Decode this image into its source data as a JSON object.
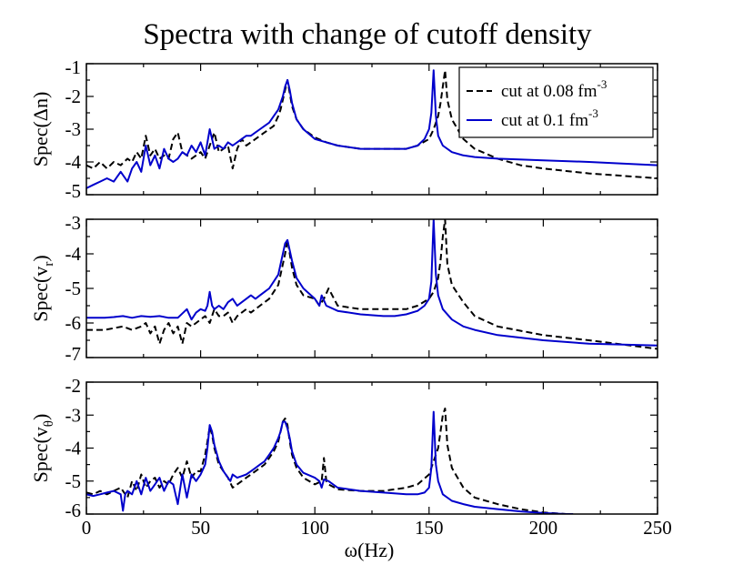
{
  "chart_data": {
    "type": "line",
    "title": "Spectra with change of cutoff density",
    "xlabel": "ω(Hz)",
    "xlim": [
      0,
      250
    ],
    "xticks": [
      0,
      50,
      100,
      150,
      200,
      250
    ],
    "legend": {
      "placement": "top-right of top panel",
      "entries": [
        {
          "label": "cut at 0.08 fm",
          "sup": "-3",
          "style": "dashed",
          "color": "#000000"
        },
        {
          "label": "cut at 0.1 fm",
          "sup": "-3",
          "style": "solid",
          "color": "#0000cc"
        }
      ]
    },
    "panels": [
      {
        "ylabel": "Spec(Δn)",
        "ylim": [
          -5,
          -1
        ],
        "yticks": [
          -5,
          -4,
          -3,
          -2,
          -1
        ],
        "series": [
          {
            "style": "dashed",
            "color": "#000000",
            "x": [
              0,
              3,
              6,
              9,
              12,
              15,
              18,
              20,
              22,
              24,
              26,
              28,
              30,
              32,
              34,
              36,
              38,
              40,
              42,
              44,
              46,
              48,
              50,
              52,
              54,
              56,
              58,
              60,
              62,
              64,
              66,
              68,
              70,
              72,
              74,
              76,
              78,
              80,
              82,
              84,
              85,
              86,
              87,
              88,
              89,
              90,
              92,
              95,
              100,
              105,
              110,
              120,
              130,
              140,
              145,
              150,
              152,
              154,
              155,
              156,
              157,
              158,
              160,
              165,
              170,
              180,
              190,
              200,
              220,
              250
            ],
            "y": [
              -4.1,
              -4.2,
              -4.0,
              -4.2,
              -4.0,
              -4.1,
              -3.9,
              -4.0,
              -3.7,
              -3.9,
              -3.2,
              -3.8,
              -3.6,
              -3.9,
              -3.8,
              -3.9,
              -3.3,
              -3.1,
              -3.7,
              -3.8,
              -3.9,
              -3.8,
              -3.7,
              -3.9,
              -3.5,
              -3.1,
              -3.7,
              -3.6,
              -3.5,
              -4.2,
              -3.6,
              -3.3,
              -3.5,
              -3.4,
              -3.3,
              -3.2,
              -3.1,
              -3.0,
              -2.9,
              -2.6,
              -2.4,
              -2.1,
              -1.8,
              -1.5,
              -1.9,
              -2.3,
              -2.7,
              -3.0,
              -3.25,
              -3.4,
              -3.5,
              -3.6,
              -3.6,
              -3.6,
              -3.5,
              -3.3,
              -3.0,
              -2.6,
              -2.2,
              -1.7,
              -1.2,
              -2.1,
              -2.7,
              -3.3,
              -3.6,
              -3.9,
              -4.1,
              -4.2,
              -4.35,
              -4.5
            ]
          },
          {
            "style": "solid",
            "color": "#0000cc",
            "x": [
              0,
              3,
              6,
              9,
              12,
              15,
              18,
              20,
              22,
              24,
              26,
              28,
              30,
              32,
              34,
              36,
              38,
              40,
              42,
              44,
              46,
              48,
              50,
              52,
              53,
              54,
              55,
              56,
              58,
              60,
              62,
              64,
              66,
              68,
              70,
              72,
              74,
              76,
              78,
              80,
              82,
              84,
              85,
              86,
              87,
              88,
              89,
              90,
              92,
              95,
              100,
              105,
              110,
              120,
              130,
              140,
              145,
              148,
              150,
              151,
              152,
              153,
              154,
              156,
              160,
              165,
              170,
              180,
              200,
              220,
              250
            ],
            "y": [
              -4.8,
              -4.7,
              -4.6,
              -4.5,
              -4.6,
              -4.3,
              -4.6,
              -4.2,
              -4.0,
              -4.3,
              -3.5,
              -4.1,
              -3.8,
              -4.2,
              -3.6,
              -3.9,
              -4.0,
              -3.9,
              -3.7,
              -3.8,
              -3.5,
              -3.7,
              -3.4,
              -3.8,
              -3.4,
              -3.0,
              -3.3,
              -3.6,
              -3.5,
              -3.6,
              -3.4,
              -3.5,
              -3.4,
              -3.3,
              -3.2,
              -3.2,
              -3.1,
              -3.0,
              -2.9,
              -2.8,
              -2.6,
              -2.4,
              -2.2,
              -2.0,
              -1.7,
              -1.5,
              -1.8,
              -2.2,
              -2.7,
              -3.0,
              -3.3,
              -3.4,
              -3.5,
              -3.6,
              -3.6,
              -3.6,
              -3.5,
              -3.3,
              -3.0,
              -2.5,
              -1.2,
              -2.6,
              -3.2,
              -3.5,
              -3.7,
              -3.8,
              -3.85,
              -3.9,
              -3.95,
              -4.0,
              -4.1
            ]
          }
        ]
      },
      {
        "ylabel": "Spec(v",
        "ylabel_sub": "r",
        "ylabel_after": ")",
        "ylim": [
          -7,
          -3
        ],
        "yticks": [
          -7,
          -6,
          -5,
          -4,
          -3
        ],
        "series": [
          {
            "style": "dashed",
            "color": "#000000",
            "x": [
              0,
              4,
              8,
              12,
              16,
              20,
              24,
              26,
              28,
              30,
              32,
              34,
              36,
              38,
              40,
              42,
              44,
              46,
              48,
              50,
              52,
              54,
              56,
              58,
              60,
              62,
              64,
              66,
              68,
              70,
              72,
              74,
              76,
              78,
              80,
              82,
              84,
              85,
              86,
              87,
              88,
              89,
              90,
              92,
              95,
              100,
              102,
              104,
              106,
              110,
              120,
              130,
              140,
              145,
              150,
              152,
              154,
              155,
              156,
              157,
              158,
              160,
              165,
              170,
              180,
              200,
              220,
              250
            ],
            "y": [
              -6.2,
              -6.2,
              -6.2,
              -6.15,
              -6.1,
              -6.2,
              -6.1,
              -6.0,
              -6.3,
              -6.1,
              -6.6,
              -6.2,
              -6.0,
              -6.3,
              -6.1,
              -6.6,
              -6.0,
              -6.1,
              -6.0,
              -5.9,
              -5.8,
              -6.0,
              -5.6,
              -5.8,
              -5.8,
              -5.7,
              -6.0,
              -5.8,
              -5.7,
              -5.6,
              -5.7,
              -5.6,
              -5.5,
              -5.4,
              -5.3,
              -5.1,
              -4.9,
              -4.6,
              -4.3,
              -4.0,
              -3.6,
              -4.0,
              -4.4,
              -4.9,
              -5.2,
              -5.3,
              -5.5,
              -5.3,
              -5.0,
              -5.5,
              -5.6,
              -5.6,
              -5.6,
              -5.5,
              -5.3,
              -5.1,
              -4.7,
              -4.2,
              -3.5,
              -3.0,
              -4.3,
              -4.9,
              -5.4,
              -5.8,
              -6.1,
              -6.35,
              -6.5,
              -6.75
            ]
          },
          {
            "style": "solid",
            "color": "#0000cc",
            "x": [
              0,
              4,
              8,
              12,
              16,
              20,
              24,
              28,
              32,
              36,
              40,
              44,
              46,
              48,
              50,
              52,
              53,
              54,
              55,
              56,
              58,
              60,
              62,
              64,
              66,
              68,
              70,
              72,
              74,
              76,
              78,
              80,
              82,
              84,
              85,
              86,
              87,
              88,
              89,
              90,
              92,
              95,
              100,
              102,
              103,
              105,
              110,
              120,
              130,
              135,
              140,
              145,
              148,
              150,
              151,
              152,
              153,
              154,
              156,
              160,
              165,
              170,
              180,
              200,
              220,
              250
            ],
            "y": [
              -5.85,
              -5.85,
              -5.85,
              -5.83,
              -5.8,
              -5.85,
              -5.8,
              -5.82,
              -5.8,
              -5.85,
              -5.85,
              -5.6,
              -5.9,
              -5.7,
              -5.6,
              -5.65,
              -5.5,
              -5.1,
              -5.5,
              -5.6,
              -5.5,
              -5.6,
              -5.4,
              -5.3,
              -5.5,
              -5.4,
              -5.3,
              -5.2,
              -5.3,
              -5.2,
              -5.1,
              -5.0,
              -4.8,
              -4.6,
              -4.3,
              -4.0,
              -3.7,
              -3.6,
              -3.9,
              -4.2,
              -4.7,
              -5.0,
              -5.3,
              -5.5,
              -5.2,
              -5.5,
              -5.65,
              -5.75,
              -5.8,
              -5.8,
              -5.75,
              -5.65,
              -5.5,
              -5.3,
              -4.8,
              -3.0,
              -4.6,
              -5.2,
              -5.6,
              -5.9,
              -6.1,
              -6.2,
              -6.35,
              -6.5,
              -6.6,
              -6.65
            ]
          }
        ]
      },
      {
        "ylabel": "Spec(v",
        "ylabel_sub": "θ",
        "ylabel_after": ")",
        "ylim": [
          -6,
          -2
        ],
        "yticks": [
          -6,
          -5,
          -4,
          -3,
          -2
        ],
        "series": [
          {
            "style": "dashed",
            "color": "#000000",
            "x": [
              0,
              3,
              6,
              9,
              12,
              15,
              18,
              20,
              22,
              24,
              26,
              28,
              30,
              32,
              34,
              36,
              38,
              40,
              42,
              44,
              46,
              48,
              50,
              52,
              53,
              54,
              55,
              56,
              58,
              60,
              62,
              64,
              66,
              68,
              70,
              72,
              74,
              76,
              78,
              80,
              82,
              84,
              85,
              86,
              87,
              88,
              89,
              90,
              92,
              95,
              100,
              103,
              104,
              105,
              106,
              110,
              120,
              130,
              140,
              145,
              150,
              152,
              154,
              155,
              156,
              157,
              158,
              160,
              165,
              170,
              180,
              190,
              200,
              210,
              213
            ],
            "y": [
              -5.35,
              -5.4,
              -5.3,
              -5.4,
              -5.3,
              -5.2,
              -5.5,
              -5.0,
              -5.3,
              -4.8,
              -5.2,
              -5.0,
              -4.9,
              -5.2,
              -5.0,
              -5.1,
              -4.8,
              -4.6,
              -4.9,
              -4.4,
              -4.9,
              -4.7,
              -4.7,
              -4.2,
              -3.8,
              -3.35,
              -3.6,
              -4.0,
              -4.5,
              -4.7,
              -4.9,
              -5.2,
              -5.1,
              -5.0,
              -4.9,
              -4.8,
              -4.7,
              -4.6,
              -4.5,
              -4.3,
              -4.1,
              -3.8,
              -3.5,
              -3.2,
              -3.1,
              -3.3,
              -3.8,
              -4.2,
              -4.6,
              -4.9,
              -5.1,
              -5.0,
              -4.3,
              -5.0,
              -5.1,
              -5.25,
              -5.3,
              -5.3,
              -5.2,
              -5.1,
              -4.8,
              -4.4,
              -4.0,
              -3.5,
              -3.0,
              -2.8,
              -3.9,
              -4.6,
              -5.2,
              -5.5,
              -5.7,
              -5.85,
              -5.95,
              -6.0,
              -6.0
            ]
          },
          {
            "style": "solid",
            "color": "#0000cc",
            "x": [
              0,
              3,
              6,
              9,
              12,
              15,
              16,
              17,
              18,
              20,
              22,
              24,
              26,
              28,
              30,
              32,
              34,
              36,
              38,
              40,
              42,
              44,
              46,
              48,
              50,
              52,
              53,
              54,
              55,
              56,
              58,
              60,
              62,
              63,
              64,
              66,
              68,
              70,
              72,
              74,
              76,
              78,
              80,
              82,
              84,
              85,
              86,
              87,
              88,
              89,
              90,
              92,
              95,
              100,
              102,
              103,
              104,
              106,
              110,
              120,
              130,
              140,
              145,
              148,
              150,
              151,
              152,
              153,
              154,
              156,
              160,
              165,
              170,
              180,
              190,
              200,
              210,
              213
            ],
            "y": [
              -5.4,
              -5.45,
              -5.4,
              -5.35,
              -5.3,
              -5.4,
              -5.9,
              -5.4,
              -5.3,
              -5.4,
              -5.0,
              -5.4,
              -4.9,
              -5.3,
              -5.1,
              -4.9,
              -5.3,
              -5.0,
              -5.1,
              -5.7,
              -4.8,
              -5.5,
              -4.8,
              -5.0,
              -4.8,
              -4.5,
              -4.0,
              -3.3,
              -3.5,
              -3.9,
              -4.4,
              -4.7,
              -4.9,
              -5.0,
              -4.8,
              -4.9,
              -4.85,
              -4.8,
              -4.7,
              -4.6,
              -4.5,
              -4.4,
              -4.2,
              -4.0,
              -3.7,
              -3.5,
              -3.2,
              -3.2,
              -3.4,
              -3.7,
              -4.1,
              -4.5,
              -4.75,
              -4.9,
              -5.0,
              -5.2,
              -4.95,
              -5.0,
              -5.2,
              -5.3,
              -5.35,
              -5.4,
              -5.4,
              -5.35,
              -5.2,
              -4.6,
              -2.9,
              -4.5,
              -5.0,
              -5.4,
              -5.6,
              -5.7,
              -5.78,
              -5.85,
              -5.92,
              -5.97,
              -6.0,
              -6.0
            ]
          }
        ]
      }
    ]
  }
}
